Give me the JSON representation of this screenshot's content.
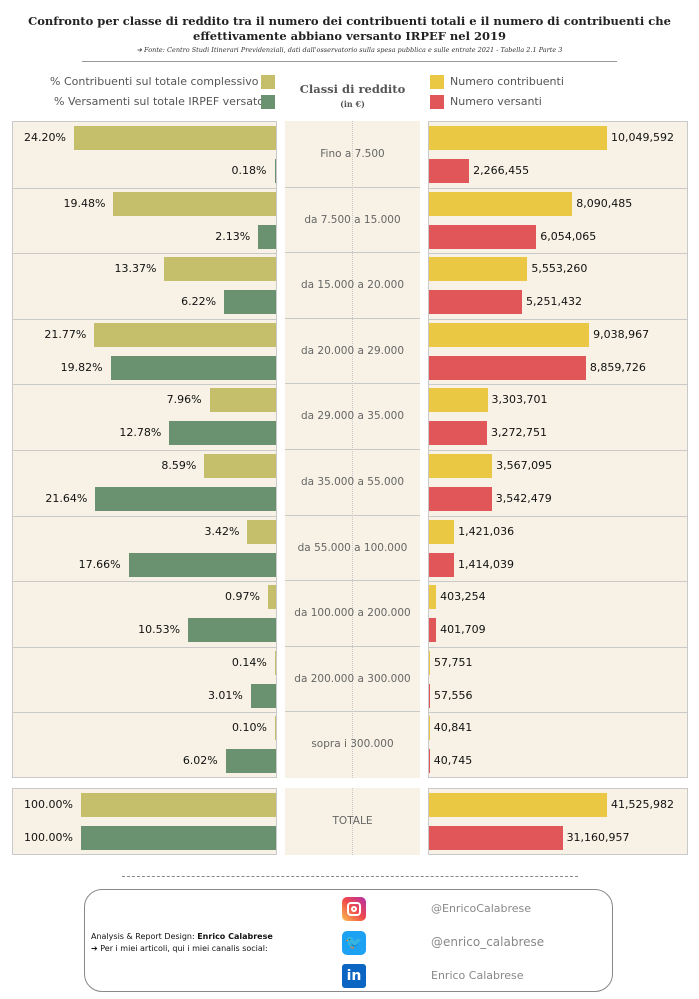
{
  "header": {
    "title": "Confronto per classe di reddito tra il numero dei contribuenti totali e il numero di contribuenti che effettivamente abbiano versanto IRPEF nel 2019",
    "source": "➔ Fonte: Centro Studi Itinerari Previdenziali, dati dall'osservatorio sulla spesa pubblica e sulle entrate 2021 - Tabella 2.1 Parte 3"
  },
  "legend": {
    "left": [
      "% Contribuenti sul totale complessivo",
      "% Versamenti sul totale IRPEF versato"
    ],
    "center_title": "Classi di reddito",
    "center_sub": "(in €)",
    "right": [
      "Numero contribuenti",
      "Numero versanti"
    ]
  },
  "colors": {
    "pct_contribuenti": "#c5bf6b",
    "pct_versamenti": "#6b9270",
    "num_contribuenti": "#ebc844",
    "num_versanti": "#e15759",
    "panel": "#f7f2e5"
  },
  "chart_data": {
    "type": "bar",
    "categories": [
      "Fino a 7.500",
      "da 7.500 a 15.000",
      "da 15.000 a 20.000",
      "da 20.000 a 29.000",
      "da 29.000 a 35.000",
      "da 35.000 a 55.000",
      "da 55.000 a 100.000",
      "da 100.000 a 200.000",
      "da 200.000 a 300.000",
      "sopra i 300.000"
    ],
    "series": [
      {
        "name": "% Contribuenti sul totale complessivo",
        "values": [
          24.2,
          19.48,
          13.37,
          21.77,
          7.96,
          8.59,
          3.42,
          0.97,
          0.14,
          0.1
        ],
        "labels": [
          "24.20%",
          "19.48%",
          "13.37%",
          "21.77%",
          "7.96%",
          "8.59%",
          "3.42%",
          "0.97%",
          "0.14%",
          "0.10%"
        ]
      },
      {
        "name": "% Versamenti sul totale IRPEF versato",
        "values": [
          0.18,
          2.13,
          6.22,
          19.82,
          12.78,
          21.64,
          17.66,
          10.53,
          3.01,
          6.02
        ],
        "labels": [
          "0.18%",
          "2.13%",
          "6.22%",
          "19.82%",
          "12.78%",
          "21.64%",
          "17.66%",
          "10.53%",
          "3.01%",
          "6.02%"
        ]
      },
      {
        "name": "Numero contribuenti",
        "values": [
          10049592,
          8090485,
          5553260,
          9038967,
          3303701,
          3567095,
          1421036,
          403254,
          57751,
          40841
        ],
        "labels": [
          "10,049,592",
          "8,090,485",
          "5,553,260",
          "9,038,967",
          "3,303,701",
          "3,567,095",
          "1,421,036",
          "403,254",
          "57,751",
          "40,841"
        ]
      },
      {
        "name": "Numero versanti",
        "values": [
          2266455,
          6054065,
          5251432,
          8859726,
          3272751,
          3542479,
          1414039,
          401709,
          57556,
          40745
        ],
        "labels": [
          "2,266,455",
          "6,054,065",
          "5,251,432",
          "8,859,726",
          "3,272,751",
          "3,542,479",
          "1,414,039",
          "401,709",
          "57,556",
          "40,745"
        ]
      }
    ],
    "total": {
      "category": "TOTALE",
      "values": [
        100.0,
        100.0,
        41525982,
        31160957
      ],
      "labels": [
        "100.00%",
        "100.00%",
        "41,525,982",
        "31,160,957"
      ]
    }
  },
  "footer": {
    "credit_prefix": "Analysis & Report Design: ",
    "credit_name": "Enrico Calabrese",
    "credit_line2": "➔ Per i miei articoli, qui i miei canalis social:",
    "instagram": "@EnricoCalabrese",
    "twitter": "@enrico_calabrese",
    "linkedin": "Enrico Calabrese"
  }
}
